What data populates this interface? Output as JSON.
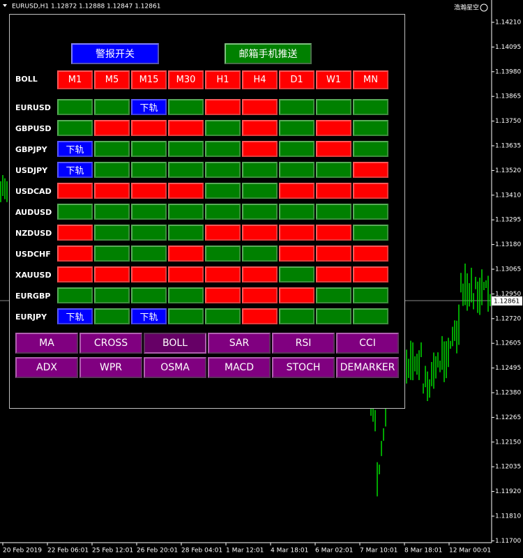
{
  "header": {
    "symbol_line": "EURUSD,H1  1.12872 1.12888 1.12847 1.12861",
    "account": "浩瀚星空"
  },
  "price_axis": [
    "1.14210",
    "1.14095",
    "1.13980",
    "1.13865",
    "1.13750",
    "1.13635",
    "1.13520",
    "1.13410",
    "1.13295",
    "1.13180",
    "1.13065",
    "1.12950",
    "1.12720",
    "1.12605",
    "1.12495",
    "1.12380",
    "1.12265",
    "1.12150",
    "1.12035",
    "1.11920",
    "1.11810",
    "1.11700"
  ],
  "current_price": "1.12861",
  "time_axis": [
    "20 Feb 2019",
    "22 Feb 06:01",
    "25 Feb 12:01",
    "26 Feb 20:01",
    "28 Feb 04:01",
    "1 Mar 12:01",
    "4 Mar 18:01",
    "6 Mar 02:01",
    "7 Mar 10:01",
    "8 Mar 18:01",
    "12 Mar 00:01"
  ],
  "panel": {
    "alert_button": "警报开关",
    "push_button": "邮箱手机推送",
    "indicator": "BOLL",
    "timeframes": [
      "M1",
      "M5",
      "M15",
      "M30",
      "H1",
      "H4",
      "D1",
      "W1",
      "MN"
    ],
    "rows": [
      {
        "symbol": "EURUSD",
        "cells": [
          "g",
          "g",
          "b",
          "g",
          "r",
          "r",
          "g",
          "g",
          "g"
        ]
      },
      {
        "symbol": "GBPUSD",
        "cells": [
          "g",
          "r",
          "r",
          "r",
          "g",
          "r",
          "g",
          "r",
          "g"
        ]
      },
      {
        "symbol": "GBPJPY",
        "cells": [
          "b",
          "g",
          "g",
          "g",
          "g",
          "r",
          "g",
          "r",
          "g"
        ]
      },
      {
        "symbol": "USDJPY",
        "cells": [
          "b",
          "g",
          "g",
          "g",
          "g",
          "g",
          "g",
          "g",
          "r"
        ]
      },
      {
        "symbol": "USDCAD",
        "cells": [
          "r",
          "r",
          "r",
          "r",
          "g",
          "g",
          "r",
          "r",
          "r"
        ]
      },
      {
        "symbol": "AUDUSD",
        "cells": [
          "g",
          "g",
          "g",
          "g",
          "g",
          "g",
          "g",
          "g",
          "g"
        ]
      },
      {
        "symbol": "NZDUSD",
        "cells": [
          "r",
          "g",
          "g",
          "g",
          "r",
          "r",
          "r",
          "r",
          "g"
        ]
      },
      {
        "symbol": "USDCHF",
        "cells": [
          "r",
          "g",
          "g",
          "r",
          "g",
          "g",
          "r",
          "r",
          "r"
        ]
      },
      {
        "symbol": "XAUUSD",
        "cells": [
          "r",
          "r",
          "r",
          "r",
          "r",
          "r",
          "g",
          "r",
          "r"
        ]
      },
      {
        "symbol": "EURGBP",
        "cells": [
          "g",
          "g",
          "g",
          "g",
          "r",
          "r",
          "r",
          "g",
          "g"
        ]
      },
      {
        "symbol": "EURJPY",
        "cells": [
          "b",
          "g",
          "b",
          "g",
          "g",
          "r",
          "g",
          "g",
          "g"
        ]
      }
    ],
    "lower_band_label": "下轨",
    "states": {
      "g": "#008000",
      "r": "#ff0000",
      "b": "#0000ff"
    },
    "indicator_buttons": [
      "MA",
      "CROSS",
      "BOLL",
      "SAR",
      "RSI",
      "CCI",
      "ADX",
      "WPR",
      "OSMA",
      "MACD",
      "STOCH",
      "DEMARKER"
    ],
    "active_button": 2
  }
}
